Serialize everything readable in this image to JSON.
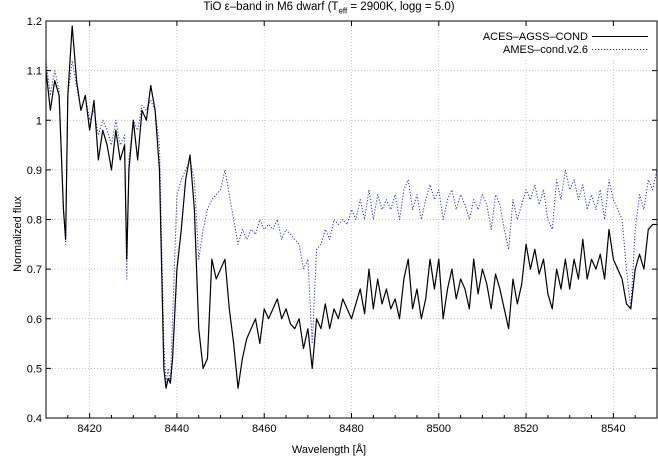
{
  "chart_data": {
    "type": "line",
    "title_main": "TiO ε–band in M6 dwarf (T",
    "title_sub": "eff",
    "title_rest": " = 2900K, logg = 5.0)",
    "xlabel": "Wavelength [Å]",
    "ylabel": "Normalized flux",
    "xlim": [
      8410,
      8550
    ],
    "ylim": [
      0.4,
      1.2
    ],
    "xticks": [
      "8420",
      "8440",
      "8460",
      "8480",
      "8500",
      "8520",
      "8540"
    ],
    "yticks": [
      "0.4",
      "0.5",
      "0.6",
      "0.7",
      "0.8",
      "0.9",
      "1",
      "1.1",
      "1.2"
    ],
    "grid": true,
    "legend_position": "top-right",
    "series": [
      {
        "name": "ACES–AGSS–COND",
        "color": "#000000",
        "style": "solid",
        "points": [
          [
            8410,
            1.1
          ],
          [
            8411,
            1.02
          ],
          [
            8412,
            1.08
          ],
          [
            8413,
            1.05
          ],
          [
            8414,
            0.82
          ],
          [
            8414.5,
            0.76
          ],
          [
            8415,
            1.05
          ],
          [
            8416,
            1.19
          ],
          [
            8417,
            1.08
          ],
          [
            8418,
            1.02
          ],
          [
            8419,
            1.05
          ],
          [
            8420,
            0.98
          ],
          [
            8421,
            1.04
          ],
          [
            8422,
            0.92
          ],
          [
            8423,
            0.98
          ],
          [
            8424,
            0.95
          ],
          [
            8425,
            0.9
          ],
          [
            8426,
            0.98
          ],
          [
            8427,
            0.92
          ],
          [
            8428,
            0.95
          ],
          [
            8428.5,
            0.72
          ],
          [
            8429,
            0.9
          ],
          [
            8430,
            1.0
          ],
          [
            8431,
            0.92
          ],
          [
            8432,
            1.02
          ],
          [
            8433,
            1.0
          ],
          [
            8434,
            1.07
          ],
          [
            8435,
            1.02
          ],
          [
            8436,
            0.9
          ],
          [
            8437,
            0.5
          ],
          [
            8437.5,
            0.46
          ],
          [
            8438,
            0.48
          ],
          [
            8438.5,
            0.47
          ],
          [
            8439,
            0.52
          ],
          [
            8440,
            0.7
          ],
          [
            8441,
            0.78
          ],
          [
            8442,
            0.88
          ],
          [
            8443,
            0.93
          ],
          [
            8444,
            0.82
          ],
          [
            8445,
            0.58
          ],
          [
            8446,
            0.5
          ],
          [
            8447,
            0.52
          ],
          [
            8448,
            0.72
          ],
          [
            8449,
            0.68
          ],
          [
            8450,
            0.7
          ],
          [
            8451,
            0.72
          ],
          [
            8452,
            0.62
          ],
          [
            8453,
            0.55
          ],
          [
            8454,
            0.46
          ],
          [
            8455,
            0.52
          ],
          [
            8456,
            0.56
          ],
          [
            8457,
            0.58
          ],
          [
            8458,
            0.6
          ],
          [
            8459,
            0.55
          ],
          [
            8460,
            0.62
          ],
          [
            8461,
            0.6
          ],
          [
            8462,
            0.62
          ],
          [
            8463,
            0.64
          ],
          [
            8464,
            0.6
          ],
          [
            8465,
            0.62
          ],
          [
            8466,
            0.59
          ],
          [
            8467,
            0.58
          ],
          [
            8468,
            0.6
          ],
          [
            8469,
            0.54
          ],
          [
            8470,
            0.58
          ],
          [
            8471,
            0.5
          ],
          [
            8472,
            0.6
          ],
          [
            8473,
            0.58
          ],
          [
            8474,
            0.63
          ],
          [
            8475,
            0.58
          ],
          [
            8476,
            0.62
          ],
          [
            8477,
            0.6
          ],
          [
            8478,
            0.64
          ],
          [
            8479,
            0.62
          ],
          [
            8480,
            0.6
          ],
          [
            8481,
            0.63
          ],
          [
            8482,
            0.66
          ],
          [
            8483,
            0.61
          ],
          [
            8484,
            0.7
          ],
          [
            8485,
            0.62
          ],
          [
            8486,
            0.68
          ],
          [
            8487,
            0.63
          ],
          [
            8488,
            0.66
          ],
          [
            8489,
            0.62
          ],
          [
            8490,
            0.64
          ],
          [
            8491,
            0.6
          ],
          [
            8492,
            0.68
          ],
          [
            8493,
            0.72
          ],
          [
            8494,
            0.62
          ],
          [
            8495,
            0.66
          ],
          [
            8496,
            0.6
          ],
          [
            8497,
            0.64
          ],
          [
            8498,
            0.72
          ],
          [
            8499,
            0.66
          ],
          [
            8500,
            0.72
          ],
          [
            8501,
            0.6
          ],
          [
            8502,
            0.66
          ],
          [
            8503,
            0.7
          ],
          [
            8504,
            0.64
          ],
          [
            8505,
            0.68
          ],
          [
            8506,
            0.66
          ],
          [
            8507,
            0.62
          ],
          [
            8508,
            0.72
          ],
          [
            8509,
            0.65
          ],
          [
            8510,
            0.7
          ],
          [
            8511,
            0.67
          ],
          [
            8512,
            0.62
          ],
          [
            8513,
            0.69
          ],
          [
            8514,
            0.66
          ],
          [
            8515,
            0.62
          ],
          [
            8516,
            0.58
          ],
          [
            8517,
            0.68
          ],
          [
            8518,
            0.63
          ],
          [
            8519,
            0.67
          ],
          [
            8520,
            0.75
          ],
          [
            8521,
            0.7
          ],
          [
            8522,
            0.74
          ],
          [
            8523,
            0.69
          ],
          [
            8524,
            0.72
          ],
          [
            8525,
            0.65
          ],
          [
            8526,
            0.62
          ],
          [
            8527,
            0.7
          ],
          [
            8528,
            0.66
          ],
          [
            8529,
            0.72
          ],
          [
            8530,
            0.66
          ],
          [
            8531,
            0.72
          ],
          [
            8532,
            0.68
          ],
          [
            8533,
            0.76
          ],
          [
            8534,
            0.68
          ],
          [
            8535,
            0.72
          ],
          [
            8536,
            0.7
          ],
          [
            8537,
            0.73
          ],
          [
            8538,
            0.68
          ],
          [
            8539,
            0.78
          ],
          [
            8540,
            0.72
          ],
          [
            8541,
            0.7
          ],
          [
            8542,
            0.68
          ],
          [
            8543,
            0.63
          ],
          [
            8544,
            0.62
          ],
          [
            8545,
            0.7
          ],
          [
            8546,
            0.73
          ],
          [
            8547,
            0.7
          ],
          [
            8548,
            0.78
          ],
          [
            8549,
            0.79
          ],
          [
            8550,
            0.79
          ]
        ]
      },
      {
        "name": "AMES–cond.v2.6",
        "color": "#2233bb",
        "style": "dotted",
        "points": [
          [
            8410,
            1.12
          ],
          [
            8411,
            1.05
          ],
          [
            8412,
            1.1
          ],
          [
            8413,
            1.06
          ],
          [
            8414,
            0.82
          ],
          [
            8414.5,
            0.75
          ],
          [
            8415,
            1.05
          ],
          [
            8416,
            1.12
          ],
          [
            8417,
            1.07
          ],
          [
            8418,
            1.02
          ],
          [
            8419,
            1.05
          ],
          [
            8420,
            1.0
          ],
          [
            8421,
            1.02
          ],
          [
            8422,
            0.97
          ],
          [
            8423,
            1.0
          ],
          [
            8424,
            0.98
          ],
          [
            8425,
            0.95
          ],
          [
            8426,
            1.0
          ],
          [
            8427,
            0.95
          ],
          [
            8428,
            0.97
          ],
          [
            8428.5,
            0.68
          ],
          [
            8429,
            0.92
          ],
          [
            8430,
            1.0
          ],
          [
            8431,
            0.98
          ],
          [
            8432,
            1.03
          ],
          [
            8433,
            1.02
          ],
          [
            8434,
            1.04
          ],
          [
            8435,
            1.02
          ],
          [
            8436,
            0.95
          ],
          [
            8437,
            0.55
          ],
          [
            8437.5,
            0.47
          ],
          [
            8438,
            0.5
          ],
          [
            8438.5,
            0.47
          ],
          [
            8439,
            0.6
          ],
          [
            8440,
            0.85
          ],
          [
            8441,
            0.88
          ],
          [
            8442,
            0.9
          ],
          [
            8443,
            0.92
          ],
          [
            8444,
            0.88
          ],
          [
            8445,
            0.72
          ],
          [
            8446,
            0.78
          ],
          [
            8447,
            0.82
          ],
          [
            8448,
            0.84
          ],
          [
            8449,
            0.85
          ],
          [
            8450,
            0.86
          ],
          [
            8451,
            0.9
          ],
          [
            8452,
            0.85
          ],
          [
            8453,
            0.8
          ],
          [
            8454,
            0.75
          ],
          [
            8455,
            0.78
          ],
          [
            8456,
            0.76
          ],
          [
            8457,
            0.78
          ],
          [
            8458,
            0.77
          ],
          [
            8459,
            0.8
          ],
          [
            8460,
            0.78
          ],
          [
            8461,
            0.79
          ],
          [
            8462,
            0.78
          ],
          [
            8463,
            0.8
          ],
          [
            8464,
            0.76
          ],
          [
            8465,
            0.78
          ],
          [
            8466,
            0.77
          ],
          [
            8467,
            0.76
          ],
          [
            8468,
            0.75
          ],
          [
            8469,
            0.7
          ],
          [
            8470,
            0.72
          ],
          [
            8471,
            0.55
          ],
          [
            8472,
            0.74
          ],
          [
            8473,
            0.75
          ],
          [
            8474,
            0.78
          ],
          [
            8475,
            0.76
          ],
          [
            8476,
            0.8
          ],
          [
            8477,
            0.79
          ],
          [
            8478,
            0.8
          ],
          [
            8479,
            0.79
          ],
          [
            8480,
            0.82
          ],
          [
            8481,
            0.8
          ],
          [
            8482,
            0.84
          ],
          [
            8483,
            0.8
          ],
          [
            8484,
            0.86
          ],
          [
            8485,
            0.8
          ],
          [
            8486,
            0.85
          ],
          [
            8487,
            0.82
          ],
          [
            8488,
            0.84
          ],
          [
            8489,
            0.82
          ],
          [
            8490,
            0.85
          ],
          [
            8491,
            0.8
          ],
          [
            8492,
            0.86
          ],
          [
            8493,
            0.88
          ],
          [
            8494,
            0.82
          ],
          [
            8495,
            0.85
          ],
          [
            8496,
            0.8
          ],
          [
            8497,
            0.84
          ],
          [
            8498,
            0.87
          ],
          [
            8499,
            0.84
          ],
          [
            8500,
            0.86
          ],
          [
            8501,
            0.8
          ],
          [
            8502,
            0.84
          ],
          [
            8503,
            0.86
          ],
          [
            8504,
            0.82
          ],
          [
            8505,
            0.85
          ],
          [
            8506,
            0.83
          ],
          [
            8507,
            0.8
          ],
          [
            8508,
            0.84
          ],
          [
            8509,
            0.82
          ],
          [
            8510,
            0.85
          ],
          [
            8511,
            0.83
          ],
          [
            8512,
            0.78
          ],
          [
            8513,
            0.85
          ],
          [
            8514,
            0.83
          ],
          [
            8515,
            0.78
          ],
          [
            8516,
            0.74
          ],
          [
            8517,
            0.84
          ],
          [
            8518,
            0.8
          ],
          [
            8519,
            0.83
          ],
          [
            8520,
            0.86
          ],
          [
            8521,
            0.84
          ],
          [
            8522,
            0.87
          ],
          [
            8523,
            0.83
          ],
          [
            8524,
            0.86
          ],
          [
            8525,
            0.8
          ],
          [
            8526,
            0.78
          ],
          [
            8527,
            0.88
          ],
          [
            8528,
            0.84
          ],
          [
            8529,
            0.9
          ],
          [
            8530,
            0.86
          ],
          [
            8531,
            0.88
          ],
          [
            8532,
            0.84
          ],
          [
            8533,
            0.87
          ],
          [
            8534,
            0.82
          ],
          [
            8535,
            0.85
          ],
          [
            8536,
            0.82
          ],
          [
            8537,
            0.86
          ],
          [
            8538,
            0.8
          ],
          [
            8539,
            0.88
          ],
          [
            8540,
            0.84
          ],
          [
            8541,
            0.82
          ],
          [
            8542,
            0.8
          ],
          [
            8543,
            0.7
          ],
          [
            8544,
            0.62
          ],
          [
            8545,
            0.78
          ],
          [
            8546,
            0.85
          ],
          [
            8547,
            0.82
          ],
          [
            8548,
            0.88
          ],
          [
            8549,
            0.86
          ],
          [
            8550,
            0.9
          ]
        ]
      }
    ]
  }
}
